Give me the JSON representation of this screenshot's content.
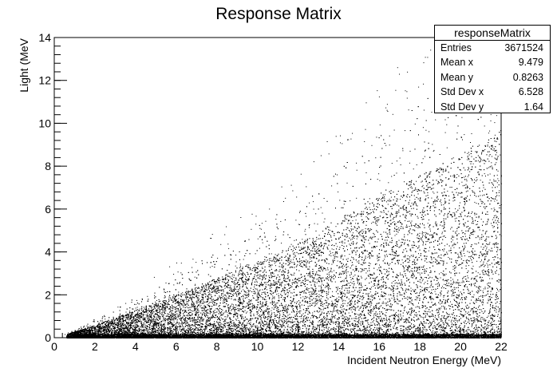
{
  "chart_data": {
    "type": "heatmap",
    "title": "Response Matrix",
    "xlabel": "Incident Neutron Energy (MeV)",
    "ylabel": "Light (MeV",
    "xlim": [
      0,
      22
    ],
    "ylim": [
      0,
      14
    ],
    "x_ticks": [
      0,
      2,
      4,
      6,
      8,
      10,
      12,
      14,
      16,
      18,
      20,
      22
    ],
    "y_ticks": [
      0,
      2,
      4,
      6,
      8,
      10,
      12,
      14
    ],
    "x_tick_labels": [
      "0",
      "2",
      "4",
      "6",
      "8",
      "10",
      "12",
      "14",
      "16",
      "18",
      "20",
      "22"
    ],
    "y_tick_labels": [
      "0",
      "2",
      "4",
      "6",
      "8",
      "10",
      "12",
      "14"
    ],
    "grid": false,
    "density_profile": [
      {
        "x": 1,
        "y_edge": 0.3
      },
      {
        "x": 2,
        "y_edge": 0.6
      },
      {
        "x": 4,
        "y_edge": 1.3
      },
      {
        "x": 6,
        "y_edge": 2.0
      },
      {
        "x": 8,
        "y_edge": 2.8
      },
      {
        "x": 10,
        "y_edge": 3.6
      },
      {
        "x": 12,
        "y_edge": 4.4
      },
      {
        "x": 14,
        "y_edge": 5.5
      },
      {
        "x": 16,
        "y_edge": 6.6
      },
      {
        "x": 18,
        "y_edge": 7.6
      },
      {
        "x": 20,
        "y_edge": 8.6
      },
      {
        "x": 22,
        "y_edge": 9.6
      }
    ],
    "marker_color": "#000000"
  },
  "stats": {
    "title": "responseMatrix",
    "rows": [
      {
        "label": "Entries",
        "value": "3671524"
      },
      {
        "label": "Mean x",
        "value": "9.479"
      },
      {
        "label": "Mean y",
        "value": "0.8263"
      },
      {
        "label": "Std Dev x",
        "value": "6.528"
      },
      {
        "label": "Std Dev y",
        "value": "1.64"
      }
    ]
  }
}
